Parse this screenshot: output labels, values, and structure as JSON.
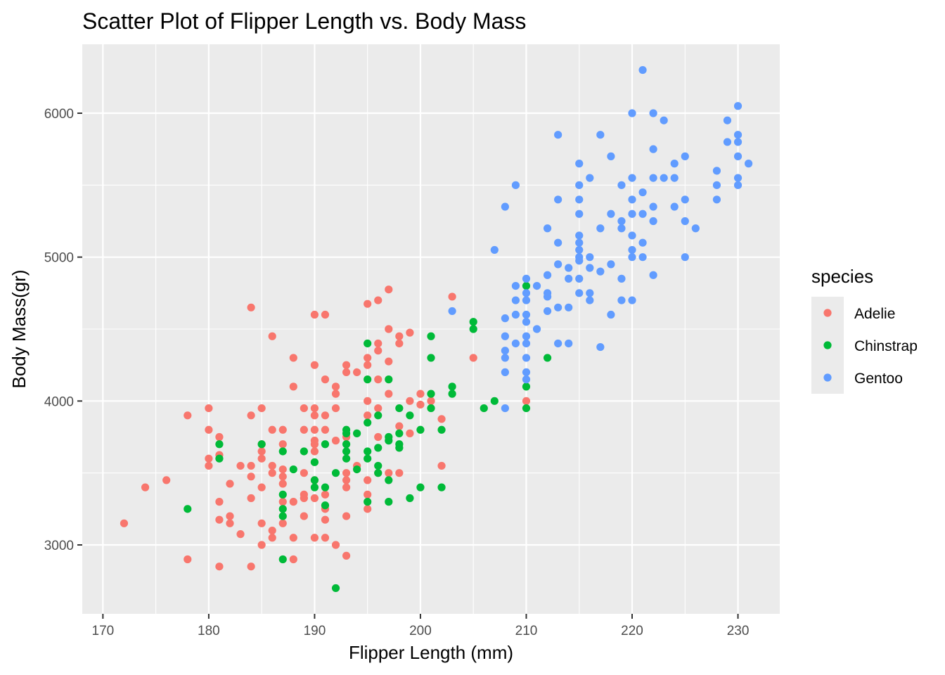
{
  "chart_data": {
    "type": "scatter",
    "title": "Scatter Plot of Flipper Length vs. Body Mass",
    "xlabel": "Flipper Length (mm)",
    "ylabel": "Body Mass(gr)",
    "xlim": [
      168.05,
      233.95
    ],
    "ylim": [
      2521.25,
      6478.75
    ],
    "x_ticks": [
      "170",
      "180",
      "190",
      "200",
      "210",
      "220",
      "230"
    ],
    "y_ticks": [
      "3000",
      "4000",
      "5000",
      "6000"
    ],
    "x_tick_values": [
      170,
      180,
      190,
      200,
      210,
      220,
      230
    ],
    "y_tick_values": [
      3000,
      4000,
      5000,
      6000
    ],
    "grid": true,
    "panel_background": "#ebebeb",
    "legend": {
      "title": "species",
      "position": "right",
      "entries": [
        "Adelie",
        "Chinstrap",
        "Gentoo"
      ]
    },
    "series": [
      {
        "name": "Adelie",
        "color": "#f8766d",
        "points": [
          [
            172,
            3150
          ],
          [
            174,
            3400
          ],
          [
            176,
            3450
          ],
          [
            178,
            3900
          ],
          [
            178,
            2900
          ],
          [
            180,
            3950
          ],
          [
            180,
            3800
          ],
          [
            180,
            3600
          ],
          [
            180,
            3550
          ],
          [
            181,
            3750
          ],
          [
            181,
            3625
          ],
          [
            181,
            3300
          ],
          [
            181,
            3175
          ],
          [
            181,
            2850
          ],
          [
            182,
            3425
          ],
          [
            182,
            3200
          ],
          [
            182,
            3150
          ],
          [
            183,
            3550
          ],
          [
            183,
            3075
          ],
          [
            184,
            4650
          ],
          [
            184,
            3900
          ],
          [
            184,
            3550
          ],
          [
            184,
            3475
          ],
          [
            184,
            3325
          ],
          [
            184,
            2850
          ],
          [
            185,
            3950
          ],
          [
            185,
            3700
          ],
          [
            185,
            3650
          ],
          [
            185,
            3600
          ],
          [
            185,
            3400
          ],
          [
            185,
            3150
          ],
          [
            185,
            3000
          ],
          [
            186,
            4450
          ],
          [
            186,
            3800
          ],
          [
            186,
            3550
          ],
          [
            186,
            3500
          ],
          [
            186,
            3100
          ],
          [
            186,
            3050
          ],
          [
            187,
            3800
          ],
          [
            187,
            3700
          ],
          [
            187,
            3525
          ],
          [
            187,
            3475
          ],
          [
            187,
            3425
          ],
          [
            187,
            3300
          ],
          [
            187,
            3150
          ],
          [
            188,
            4300
          ],
          [
            188,
            4100
          ],
          [
            188,
            3300
          ],
          [
            188,
            3050
          ],
          [
            188,
            2900
          ],
          [
            189,
            3950
          ],
          [
            189,
            3800
          ],
          [
            189,
            3500
          ],
          [
            189,
            3350
          ],
          [
            189,
            3325
          ],
          [
            189,
            3200
          ],
          [
            190,
            4600
          ],
          [
            190,
            4250
          ],
          [
            190,
            3950
          ],
          [
            190,
            3900
          ],
          [
            190,
            3800
          ],
          [
            190,
            3725
          ],
          [
            190,
            3700
          ],
          [
            190,
            3650
          ],
          [
            190,
            3450
          ],
          [
            190,
            3325
          ],
          [
            190,
            3050
          ],
          [
            191,
            4600
          ],
          [
            191,
            4150
          ],
          [
            191,
            3900
          ],
          [
            191,
            3800
          ],
          [
            191,
            3350
          ],
          [
            191,
            3250
          ],
          [
            191,
            3175
          ],
          [
            191,
            3050
          ],
          [
            192,
            4100
          ],
          [
            192,
            4050
          ],
          [
            192,
            3950
          ],
          [
            192,
            3725
          ],
          [
            192,
            3000
          ],
          [
            193,
            4250
          ],
          [
            193,
            4200
          ],
          [
            193,
            3750
          ],
          [
            193,
            3500
          ],
          [
            193,
            3450
          ],
          [
            193,
            3400
          ],
          [
            193,
            3200
          ],
          [
            193,
            2925
          ],
          [
            194,
            4200
          ],
          [
            194,
            3550
          ],
          [
            195,
            4675
          ],
          [
            195,
            4300
          ],
          [
            195,
            4250
          ],
          [
            195,
            4000
          ],
          [
            195,
            3900
          ],
          [
            195,
            3450
          ],
          [
            195,
            3350
          ],
          [
            195,
            3250
          ],
          [
            196,
            4700
          ],
          [
            196,
            4400
          ],
          [
            196,
            4350
          ],
          [
            196,
            4150
          ],
          [
            196,
            3950
          ],
          [
            196,
            3750
          ],
          [
            196,
            3500
          ],
          [
            197,
            4775
          ],
          [
            197,
            4500
          ],
          [
            197,
            4275
          ],
          [
            197,
            4050
          ],
          [
            197,
            3500
          ],
          [
            198,
            4450
          ],
          [
            198,
            4400
          ],
          [
            198,
            3825
          ],
          [
            198,
            3500
          ],
          [
            199,
            4475
          ],
          [
            199,
            4000
          ],
          [
            199,
            3775
          ],
          [
            200,
            4050
          ],
          [
            200,
            3975
          ],
          [
            201,
            4000
          ],
          [
            202,
            3875
          ],
          [
            202,
            3550
          ],
          [
            203,
            4725
          ],
          [
            205,
            4300
          ],
          [
            210,
            4000
          ]
        ]
      },
      {
        "name": "Chinstrap",
        "color": "#00ba38",
        "points": [
          [
            178,
            3250
          ],
          [
            181,
            3700
          ],
          [
            181,
            3600
          ],
          [
            185,
            3700
          ],
          [
            187,
            3650
          ],
          [
            187,
            3350
          ],
          [
            187,
            3250
          ],
          [
            187,
            3200
          ],
          [
            187,
            2900
          ],
          [
            188,
            3525
          ],
          [
            189,
            3650
          ],
          [
            190,
            3575
          ],
          [
            190,
            3450
          ],
          [
            190,
            3400
          ],
          [
            191,
            3700
          ],
          [
            191,
            3400
          ],
          [
            191,
            3275
          ],
          [
            192,
            3500
          ],
          [
            192,
            2700
          ],
          [
            193,
            3800
          ],
          [
            193,
            3775
          ],
          [
            193,
            3700
          ],
          [
            193,
            3650
          ],
          [
            193,
            3600
          ],
          [
            194,
            3775
          ],
          [
            194,
            3525
          ],
          [
            195,
            4400
          ],
          [
            195,
            4150
          ],
          [
            195,
            3850
          ],
          [
            195,
            3650
          ],
          [
            195,
            3600
          ],
          [
            195,
            3300
          ],
          [
            196,
            3900
          ],
          [
            196,
            3675
          ],
          [
            196,
            3550
          ],
          [
            196,
            3500
          ],
          [
            197,
            4150
          ],
          [
            197,
            3750
          ],
          [
            197,
            3725
          ],
          [
            197,
            3450
          ],
          [
            197,
            3300
          ],
          [
            198,
            3950
          ],
          [
            198,
            3775
          ],
          [
            198,
            3700
          ],
          [
            198,
            3675
          ],
          [
            199,
            3900
          ],
          [
            199,
            3325
          ],
          [
            200,
            3800
          ],
          [
            200,
            3400
          ],
          [
            201,
            4450
          ],
          [
            201,
            4300
          ],
          [
            201,
            4050
          ],
          [
            201,
            3950
          ],
          [
            202,
            3800
          ],
          [
            202,
            3400
          ],
          [
            203,
            4100
          ],
          [
            203,
            4050
          ],
          [
            205,
            4550
          ],
          [
            205,
            4500
          ],
          [
            206,
            3950
          ],
          [
            207,
            4000
          ],
          [
            210,
            4800
          ],
          [
            210,
            4100
          ],
          [
            210,
            3950
          ],
          [
            212,
            4300
          ]
        ]
      },
      {
        "name": "Gentoo",
        "color": "#619cff",
        "points": [
          [
            203,
            4625
          ],
          [
            207,
            5050
          ],
          [
            208,
            5350
          ],
          [
            208,
            4575
          ],
          [
            208,
            4450
          ],
          [
            208,
            4350
          ],
          [
            208,
            4300
          ],
          [
            208,
            4200
          ],
          [
            208,
            3950
          ],
          [
            209,
            5500
          ],
          [
            209,
            4800
          ],
          [
            209,
            4700
          ],
          [
            209,
            4600
          ],
          [
            209,
            4400
          ],
          [
            210,
            4850
          ],
          [
            210,
            4750
          ],
          [
            210,
            4700
          ],
          [
            210,
            4600
          ],
          [
            210,
            4550
          ],
          [
            210,
            4450
          ],
          [
            210,
            4400
          ],
          [
            210,
            4300
          ],
          [
            210,
            4200
          ],
          [
            210,
            4150
          ],
          [
            211,
            4800
          ],
          [
            211,
            4500
          ],
          [
            212,
            5200
          ],
          [
            212,
            4875
          ],
          [
            212,
            4750
          ],
          [
            212,
            4725
          ],
          [
            212,
            4625
          ],
          [
            213,
            5850
          ],
          [
            213,
            5400
          ],
          [
            213,
            5100
          ],
          [
            213,
            4950
          ],
          [
            213,
            4650
          ],
          [
            213,
            4400
          ],
          [
            214,
            4925
          ],
          [
            214,
            4850
          ],
          [
            214,
            4650
          ],
          [
            214,
            4400
          ],
          [
            215,
            5650
          ],
          [
            215,
            5500
          ],
          [
            215,
            5400
          ],
          [
            215,
            5300
          ],
          [
            215,
            5150
          ],
          [
            215,
            5100
          ],
          [
            215,
            5050
          ],
          [
            215,
            5000
          ],
          [
            215,
            4975
          ],
          [
            215,
            4850
          ],
          [
            215,
            4750
          ],
          [
            216,
            5550
          ],
          [
            216,
            5000
          ],
          [
            216,
            4925
          ],
          [
            216,
            4750
          ],
          [
            216,
            4700
          ],
          [
            217,
            5850
          ],
          [
            217,
            5200
          ],
          [
            217,
            4900
          ],
          [
            217,
            4375
          ],
          [
            218,
            5700
          ],
          [
            218,
            5300
          ],
          [
            218,
            4950
          ],
          [
            218,
            4600
          ],
          [
            219,
            5500
          ],
          [
            219,
            5250
          ],
          [
            219,
            5200
          ],
          [
            219,
            4850
          ],
          [
            219,
            4700
          ],
          [
            220,
            6000
          ],
          [
            220,
            5550
          ],
          [
            220,
            5400
          ],
          [
            220,
            5300
          ],
          [
            220,
            5150
          ],
          [
            220,
            5050
          ],
          [
            220,
            5000
          ],
          [
            220,
            4700
          ],
          [
            221,
            6300
          ],
          [
            221,
            5450
          ],
          [
            221,
            5300
          ],
          [
            221,
            5100
          ],
          [
            221,
            5000
          ],
          [
            222,
            6000
          ],
          [
            222,
            5750
          ],
          [
            222,
            5550
          ],
          [
            222,
            5350
          ],
          [
            222,
            5250
          ],
          [
            222,
            4875
          ],
          [
            223,
            5950
          ],
          [
            223,
            5550
          ],
          [
            224,
            5650
          ],
          [
            224,
            5550
          ],
          [
            224,
            5350
          ],
          [
            225,
            5700
          ],
          [
            225,
            5400
          ],
          [
            225,
            5250
          ],
          [
            225,
            5000
          ],
          [
            226,
            5200
          ],
          [
            228,
            5600
          ],
          [
            228,
            5500
          ],
          [
            228,
            5400
          ],
          [
            229,
            5950
          ],
          [
            229,
            5800
          ],
          [
            230,
            6050
          ],
          [
            230,
            5850
          ],
          [
            230,
            5800
          ],
          [
            230,
            5700
          ],
          [
            230,
            5550
          ],
          [
            230,
            5500
          ],
          [
            231,
            5650
          ]
        ]
      }
    ]
  }
}
